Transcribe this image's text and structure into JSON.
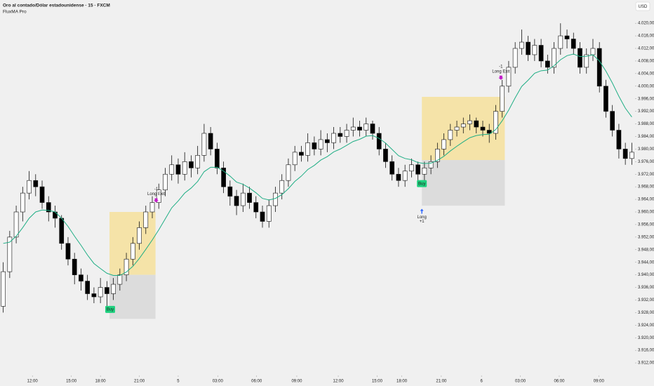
{
  "chart_data": {
    "type": "candlestick",
    "title": "Oro al contado/Dólar estadounidense · 15 · FXCM",
    "indicator": "FluxMA Pro",
    "currency": "USD",
    "up_color": "#ffffff",
    "down_color": "#000000",
    "outline_color": "#111111",
    "candles": [
      [
        3930,
        3944,
        3928,
        3941
      ],
      [
        3941,
        3954,
        3939,
        3952
      ],
      [
        3952,
        3962,
        3950,
        3960
      ],
      [
        3960,
        3968,
        3957,
        3966
      ],
      [
        3966,
        3973,
        3964,
        3970
      ],
      [
        3970,
        3972,
        3965,
        3968
      ],
      [
        3968,
        3970,
        3961,
        3963
      ],
      [
        3963,
        3965,
        3957,
        3960
      ],
      [
        3960,
        3962,
        3955,
        3958
      ],
      [
        3958,
        3959,
        3948,
        3950
      ],
      [
        3950,
        3952,
        3943,
        3945
      ],
      [
        3945,
        3947,
        3937,
        3940
      ],
      [
        3940,
        3942,
        3935,
        3938
      ],
      [
        3938,
        3940,
        3932,
        3934
      ],
      [
        3934,
        3936,
        3931,
        3933
      ],
      [
        3933,
        3939,
        3931,
        3936
      ],
      [
        3936,
        3938,
        3930,
        3934
      ],
      [
        3934,
        3939,
        3932,
        3937
      ],
      [
        3937,
        3942,
        3935,
        3940
      ],
      [
        3940,
        3947,
        3938,
        3945
      ],
      [
        3945,
        3952,
        3943,
        3950
      ],
      [
        3950,
        3957,
        3948,
        3955
      ],
      [
        3955,
        3962,
        3953,
        3960
      ],
      [
        3960,
        3965,
        3958,
        3963
      ],
      [
        3963,
        3969,
        3961,
        3967
      ],
      [
        3967,
        3974,
        3965,
        3972
      ],
      [
        3972,
        3978,
        3970,
        3975
      ],
      [
        3975,
        3977,
        3969,
        3972
      ],
      [
        3972,
        3979,
        3970,
        3976
      ],
      [
        3976,
        3978,
        3971,
        3974
      ],
      [
        3974,
        3981,
        3972,
        3978
      ],
      [
        3978,
        3988,
        3976,
        3985
      ],
      [
        3985,
        3987,
        3978,
        3980
      ],
      [
        3980,
        3982,
        3972,
        3974
      ],
      [
        3974,
        3976,
        3966,
        3968
      ],
      [
        3968,
        3970,
        3962,
        3965
      ],
      [
        3965,
        3967,
        3959,
        3962
      ],
      [
        3962,
        3969,
        3960,
        3966
      ],
      [
        3966,
        3968,
        3961,
        3963
      ],
      [
        3963,
        3965,
        3958,
        3960
      ],
      [
        3960,
        3962,
        3955,
        3957
      ],
      [
        3957,
        3964,
        3955,
        3962
      ],
      [
        3962,
        3968,
        3960,
        3966
      ],
      [
        3966,
        3972,
        3964,
        3970
      ],
      [
        3970,
        3977,
        3968,
        3975
      ],
      [
        3975,
        3981,
        3973,
        3979
      ],
      [
        3979,
        3981,
        3976,
        3978
      ],
      [
        3978,
        3985,
        3976,
        3982
      ],
      [
        3982,
        3984,
        3978,
        3980
      ],
      [
        3980,
        3986,
        3978,
        3983
      ],
      [
        3983,
        3985,
        3979,
        3982
      ],
      [
        3982,
        3987,
        3980,
        3985
      ],
      [
        3985,
        3987,
        3982,
        3984
      ],
      [
        3984,
        3988,
        3982,
        3986
      ],
      [
        3986,
        3990,
        3984,
        3987
      ],
      [
        3987,
        3989,
        3984,
        3986
      ],
      [
        3986,
        3990,
        3984,
        3988
      ],
      [
        3988,
        3989,
        3983,
        3985
      ],
      [
        3985,
        3987,
        3978,
        3980
      ],
      [
        3980,
        3982,
        3974,
        3976
      ],
      [
        3976,
        3978,
        3970,
        3972
      ],
      [
        3972,
        3974,
        3968,
        3970
      ],
      [
        3970,
        3975,
        3968,
        3973
      ],
      [
        3973,
        3977,
        3971,
        3975
      ],
      [
        3975,
        3976,
        3969,
        3972
      ],
      [
        3972,
        3976,
        3970,
        3974
      ],
      [
        3974,
        3978,
        3972,
        3976
      ],
      [
        3976,
        3982,
        3974,
        3980
      ],
      [
        3980,
        3985,
        3978,
        3983
      ],
      [
        3983,
        3988,
        3981,
        3986
      ],
      [
        3986,
        3989,
        3984,
        3987
      ],
      [
        3987,
        3990,
        3985,
        3988
      ],
      [
        3988,
        3991,
        3986,
        3989
      ],
      [
        3989,
        3990,
        3985,
        3987
      ],
      [
        3987,
        3989,
        3984,
        3986
      ],
      [
        3986,
        3988,
        3982,
        3985
      ],
      [
        3985,
        3994,
        3983,
        3992
      ],
      [
        3992,
        4002,
        3990,
        4000
      ],
      [
        4000,
        4008,
        3998,
        4006
      ],
      [
        4006,
        4014,
        4004,
        4012
      ],
      [
        4012,
        4018,
        4010,
        4014
      ],
      [
        4014,
        4016,
        4008,
        4010
      ],
      [
        4010,
        4015,
        4008,
        4013
      ],
      [
        4013,
        4015,
        4006,
        4008
      ],
      [
        4008,
        4010,
        4004,
        4006
      ],
      [
        4006,
        4014,
        4004,
        4012
      ],
      [
        4012,
        4020,
        4010,
        4016
      ],
      [
        4016,
        4018,
        4012,
        4015
      ],
      [
        4015,
        4017,
        4010,
        4012
      ],
      [
        4012,
        4014,
        4004,
        4006
      ],
      [
        4006,
        4012,
        4004,
        4010
      ],
      [
        4010,
        4015,
        4008,
        4012
      ],
      [
        4012,
        4014,
        3998,
        4000
      ],
      [
        4000,
        4002,
        3990,
        3992
      ],
      [
        3992,
        3994,
        3984,
        3986
      ],
      [
        3986,
        3988,
        3977,
        3980
      ],
      [
        3980,
        3982,
        3975,
        3977
      ],
      [
        3977,
        3982,
        3975,
        3979
      ]
    ],
    "ma": {
      "color": "#1fae85",
      "values": [
        3950,
        3950.4,
        3952.3,
        3955,
        3958,
        3960,
        3960.6,
        3960.5,
        3960,
        3958,
        3955.4,
        3952.3,
        3949.4,
        3946.3,
        3943.6,
        3942,
        3940.5,
        3939.8,
        3939.8,
        3940.9,
        3942.7,
        3945.2,
        3948.1,
        3951.1,
        3954.3,
        3957.8,
        3961.3,
        3963.5,
        3966,
        3967.6,
        3969.7,
        3972.8,
        3974.2,
        3974.2,
        3973,
        3971.4,
        3969.5,
        3968.8,
        3967.6,
        3966.1,
        3964.3,
        3963.8,
        3964.3,
        3965.5,
        3967.4,
        3969.7,
        3971.4,
        3973.5,
        3974.8,
        3976.5,
        3977.6,
        3979.1,
        3980,
        3981.2,
        3982.4,
        3983.1,
        3984.1,
        3984.3,
        3983.4,
        3981.9,
        3979.9,
        3977.9,
        3977,
        3976.6,
        3975.7,
        3975.4,
        3975.5,
        3976.4,
        3977.7,
        3979.4,
        3980.9,
        3982.3,
        3983.6,
        3984.3,
        3984.6,
        3984.7,
        3986.2,
        3989,
        3992.4,
        3996.3,
        3999.9,
        4001.9,
        4004.1,
        4004.9,
        4005.1,
        4006.5,
        4008.4,
        4009.7,
        4010.2,
        4009.4,
        4009.5,
        4010,
        4008,
        4004.8,
        4001,
        3996.8,
        3993,
        3990.2
      ]
    },
    "zones": [
      {
        "x": [
          16.4,
          23.5
        ],
        "target": [
          3960,
          3940
        ],
        "stop": [
          3940,
          3926
        ]
      },
      {
        "x": [
          64.6,
          77.4
        ],
        "target": [
          3996.6,
          3976.5
        ],
        "stop": [
          3976.5,
          3962
        ]
      }
    ],
    "target_color": "#f5e3a8",
    "stop_color": "#dcdcdc",
    "signals": [
      {
        "label": "Buy",
        "x": 16.5,
        "price": 3929
      },
      {
        "label": "Buy",
        "x": 64.6,
        "price": 3969
      }
    ],
    "trades": [
      {
        "label": "Long Exit",
        "qty": "-1",
        "x": 23.6,
        "price": 3963
      },
      {
        "label": "Long",
        "qty": "+1",
        "x": 64.6,
        "price": 3961
      },
      {
        "label": "Long Exit",
        "qty": "-1",
        "x": 76.8,
        "price": 4002
      }
    ],
    "xlim": [
      -0.5,
      97.5
    ],
    "xticks": [
      {
        "value": 4.5,
        "label": "12:00"
      },
      {
        "value": 10.5,
        "label": "15:00"
      },
      {
        "value": 15,
        "label": "18:00"
      },
      {
        "value": 21,
        "label": "21:00"
      },
      {
        "value": 27,
        "label": "5"
      },
      {
        "value": 33.1,
        "label": "03:00"
      },
      {
        "value": 39.1,
        "label": "06:00"
      },
      {
        "value": 45.3,
        "label": "09:00"
      },
      {
        "value": 51.7,
        "label": "12:00"
      },
      {
        "value": 57.7,
        "label": "15:00"
      },
      {
        "value": 61.5,
        "label": "18:00"
      },
      {
        "value": 67.6,
        "label": "21:00"
      },
      {
        "value": 73.8,
        "label": "6"
      },
      {
        "value": 79.8,
        "label": "03:00"
      },
      {
        "value": 85.8,
        "label": "06:00"
      },
      {
        "value": 91.9,
        "label": "09:00"
      }
    ],
    "ylim": [
      3908,
      4027.4
    ],
    "yticks": [
      {
        "value": 3912,
        "label": "3.912,00"
      },
      {
        "value": 3916,
        "label": "3.916,00"
      },
      {
        "value": 3920,
        "label": "3.920,00"
      },
      {
        "value": 3924,
        "label": "3.924,00"
      },
      {
        "value": 3928,
        "label": "3.928,00"
      },
      {
        "value": 3932,
        "label": "3.932,00"
      },
      {
        "value": 3936,
        "label": "3.936,00"
      },
      {
        "value": 3940,
        "label": "3.940,00"
      },
      {
        "value": 3944,
        "label": "3.944,00"
      },
      {
        "value": 3948,
        "label": "3.948,00"
      },
      {
        "value": 3952,
        "label": "3.952,00"
      },
      {
        "value": 3956,
        "label": "3.956,00"
      },
      {
        "value": 3960,
        "label": "3.960,00"
      },
      {
        "value": 3964,
        "label": "3.964,00"
      },
      {
        "value": 3968,
        "label": "3.968,00"
      },
      {
        "value": 3972,
        "label": "3.972,00"
      },
      {
        "value": 3976,
        "label": "3.976,00"
      },
      {
        "value": 3980,
        "label": "3.980,00"
      },
      {
        "value": 3984,
        "label": "3.984,00"
      },
      {
        "value": 3988,
        "label": "3.988,00"
      },
      {
        "value": 3992,
        "label": "3.992,00"
      },
      {
        "value": 3996,
        "label": "3.996,00"
      },
      {
        "value": 4000,
        "label": "4.000,00"
      },
      {
        "value": 4004,
        "label": "4.004,00"
      },
      {
        "value": 4008,
        "label": "4.008,00"
      },
      {
        "value": 4012,
        "label": "4.012,00"
      },
      {
        "value": 4016,
        "label": "4.016,00"
      },
      {
        "value": 4020,
        "label": "4.020,00"
      }
    ]
  }
}
